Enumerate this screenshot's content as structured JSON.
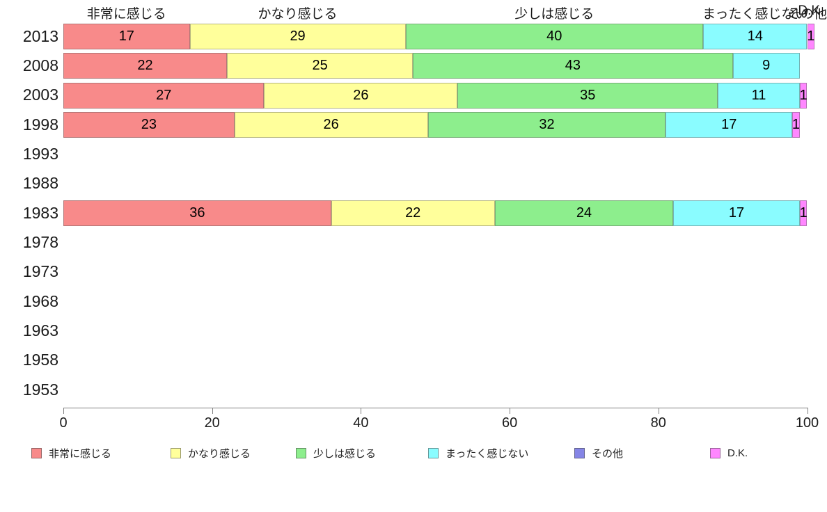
{
  "chart_data": {
    "type": "bar",
    "orientation": "horizontal-stacked",
    "title": "",
    "xlabel": "",
    "ylabel": "",
    "xlim": [
      0,
      100
    ],
    "xticks": [
      0,
      20,
      40,
      60,
      80,
      100
    ],
    "grid": false,
    "legend_position": "bottom",
    "categories": [
      "2013",
      "2008",
      "2003",
      "1998",
      "1993",
      "1988",
      "1983",
      "1978",
      "1973",
      "1968",
      "1963",
      "1958",
      "1953"
    ],
    "series": [
      {
        "name": "非常に感じる",
        "color": "#F88A8A",
        "values": [
          17,
          22,
          27,
          23,
          0,
          0,
          36,
          0,
          0,
          0,
          0,
          0,
          0
        ]
      },
      {
        "name": "かなり感じる",
        "color": "#FFFF9B",
        "values": [
          29,
          25,
          26,
          26,
          0,
          0,
          22,
          0,
          0,
          0,
          0,
          0,
          0
        ]
      },
      {
        "name": "少しは感じる",
        "color": "#8DEE8D",
        "values": [
          40,
          43,
          35,
          32,
          0,
          0,
          24,
          0,
          0,
          0,
          0,
          0,
          0
        ]
      },
      {
        "name": "まったく感じない",
        "color": "#8AFCFF",
        "values": [
          14,
          9,
          11,
          17,
          0,
          0,
          17,
          0,
          0,
          0,
          0,
          0,
          0
        ]
      },
      {
        "name": "その他",
        "color": "#8585E6",
        "values": [
          0,
          0,
          0,
          0,
          0,
          0,
          0,
          0,
          0,
          0,
          0,
          0,
          0
        ]
      },
      {
        "name": "D.K.",
        "color": "#FF87FF",
        "values": [
          1,
          0,
          1,
          1,
          0,
          0,
          1,
          0,
          0,
          0,
          0,
          0,
          0
        ]
      }
    ],
    "column_headers": [
      {
        "text": "非常に感じる",
        "x_units": 8.5
      },
      {
        "text": "かなり感じる",
        "x_units": 31.5
      },
      {
        "text": "少しは感じる",
        "x_units": 66
      },
      {
        "text": "まったく感じない",
        "x_units": 93
      },
      {
        "text": "その他",
        "x_units": 100
      },
      {
        "text": "D.K.",
        "x_units": 100.5
      }
    ],
    "legend": [
      {
        "label": "非常に感じる",
        "color": "#F88A8A"
      },
      {
        "label": "かなり感じる",
        "color": "#FFFF9B"
      },
      {
        "label": "少しは感じる",
        "color": "#8DEE8D"
      },
      {
        "label": "まったく感じない",
        "color": "#8AFCFF"
      },
      {
        "label": "その他",
        "color": "#8585E6"
      },
      {
        "label": "D.K.",
        "color": "#FF87FF"
      }
    ]
  }
}
